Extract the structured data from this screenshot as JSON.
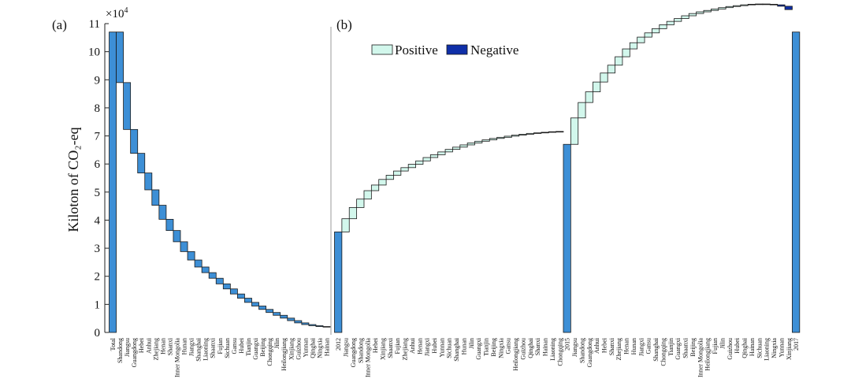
{
  "figure": {
    "ylabel": "Kiloton of CO₂-eq",
    "multiplier_base": "×10",
    "multiplier_exp": "4",
    "yticks": [
      0,
      1,
      2,
      3,
      4,
      5,
      6,
      7,
      8,
      9,
      10,
      11
    ]
  },
  "colors": {
    "bar": "#3d8fd6",
    "positive": "#d2f7ec",
    "negative": "#0f2fa8",
    "stroke": "#1a1a1a",
    "divider": "#bbbbbb"
  },
  "chart_data": [
    {
      "type": "bar",
      "panel_label": "(a)",
      "ylim": [
        0,
        11
      ],
      "categories": [
        "Total",
        "Shandong",
        "Jiangsu",
        "Guangdong",
        "Hebei",
        "Anhui",
        "Zhejiang",
        "Henan",
        "Shanxi",
        "Inner Mongolia",
        "Hunan",
        "Jiangxi",
        "Shanghai",
        "Liaoning",
        "Shaanxi",
        "Fujian",
        "Sichuan",
        "Gansu",
        "Hubei",
        "Tianjin",
        "Guangxi",
        "Beijing",
        "Chongqing",
        "Jilin",
        "Heilongjiang",
        "Xinjiang",
        "Guizhou",
        "Yunnan",
        "Qinghai",
        "Ningxia",
        "Hainan"
      ],
      "values": [
        10.7,
        1.8,
        1.67,
        0.85,
        0.7,
        0.6,
        0.55,
        0.5,
        0.4,
        0.4,
        0.35,
        0.3,
        0.25,
        0.2,
        0.2,
        0.2,
        0.18,
        0.18,
        0.15,
        0.15,
        0.13,
        0.12,
        0.11,
        0.1,
        0.1,
        0.09,
        0.08,
        0.06,
        0.04,
        0.03,
        0.02
      ]
    },
    {
      "type": "bar",
      "panel_label": "(b)",
      "ylim": [
        0,
        11
      ],
      "legend": {
        "positive": "Positive",
        "negative": "Negative",
        "placement": "top-left"
      },
      "categories": [
        "2012",
        "Jiangsu",
        "Guangdong",
        "Shandong",
        "Inner Mongolia",
        "Hebei",
        "Xinjiang",
        "Shaanxi",
        "Fujian",
        "Zhejiang",
        "Anhui",
        "Henan",
        "Jiangxi",
        "Hubei",
        "Yunnan",
        "Sichuan",
        "Shanghai",
        "Hunan",
        "Jilin",
        "Guangxi",
        "Tianjin",
        "Beijing",
        "Ningxia",
        "Gansu",
        "Heilongjiang",
        "Guizhou",
        "Qinghai",
        "Shanxi",
        "Hainan",
        "Liaoning",
        "Chongqing",
        "2015",
        "Jiangsu",
        "Shandong",
        "Guangdong",
        "Anhui",
        "Hebei",
        "Shanxi",
        "Zhejiang",
        "Henan",
        "Hunan",
        "Jiangxi",
        "Gansu",
        "Shanghai",
        "Chongqing",
        "Tianjin",
        "Guangxi",
        "Shaanxi",
        "Beijing",
        "Inner Mongolia",
        "Heilongjiang",
        "Fujian",
        "Jilin",
        "Guizhou",
        "Hubei",
        "Qinghai",
        "Hainan",
        "Sichuan",
        "Liaoning",
        "Ningxia",
        "Yunnan",
        "Xinjiang",
        "2017"
      ],
      "values": [
        3.58,
        0.47,
        0.4,
        0.3,
        0.3,
        0.2,
        0.2,
        0.15,
        0.15,
        0.12,
        0.12,
        0.12,
        0.12,
        0.1,
        0.1,
        0.09,
        0.08,
        0.08,
        0.07,
        0.06,
        0.05,
        0.05,
        0.04,
        0.04,
        0.04,
        0.03,
        0.03,
        0.02,
        0.02,
        0.02,
        0.01,
        6.7,
        0.94,
        0.55,
        0.38,
        0.35,
        0.32,
        0.28,
        0.3,
        0.28,
        0.22,
        0.2,
        0.15,
        0.15,
        0.14,
        0.12,
        0.1,
        0.1,
        0.08,
        0.06,
        0.05,
        0.05,
        0.05,
        0.04,
        0.03,
        0.03,
        0.02,
        0.01,
        -0.01,
        -0.02,
        -0.05,
        -0.12,
        10.7
      ],
      "totals": [
        "2012",
        "2015",
        "2017"
      ]
    }
  ]
}
